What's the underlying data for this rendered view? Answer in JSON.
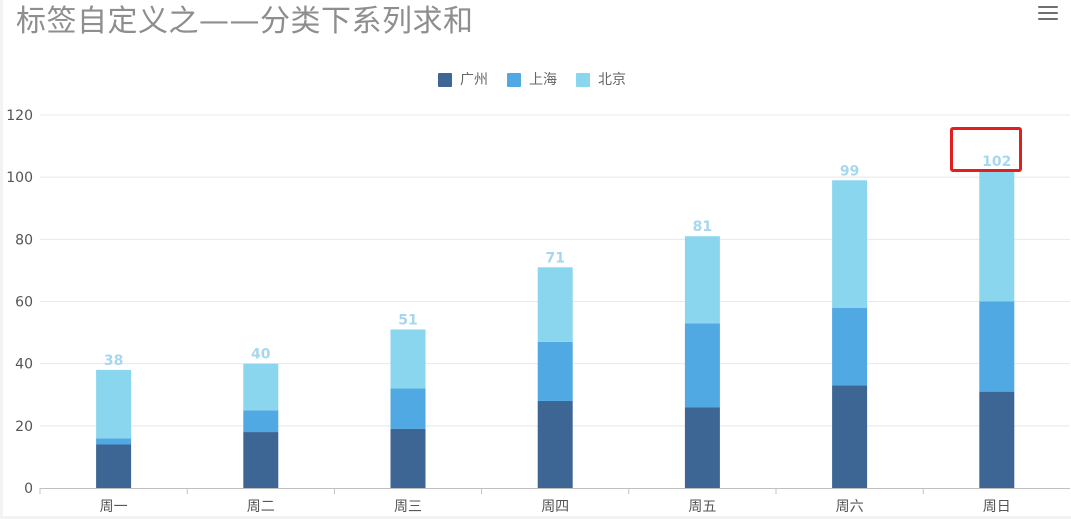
{
  "title": "标签自定义之——分类下系列求和",
  "chart_data": {
    "type": "bar",
    "stacked": true,
    "categories": [
      "周一",
      "周二",
      "周三",
      "周四",
      "周五",
      "周六",
      "周日"
    ],
    "series": [
      {
        "name": "广州",
        "color": "#3d6694",
        "values": [
          14,
          18,
          19,
          28,
          26,
          33,
          31
        ]
      },
      {
        "name": "上海",
        "color": "#50a9e3",
        "values": [
          2,
          7,
          13,
          19,
          27,
          25,
          29
        ]
      },
      {
        "name": "北京",
        "color": "#8bd6ef",
        "values": [
          22,
          15,
          19,
          24,
          28,
          41,
          42
        ]
      }
    ],
    "totals": [
      "38",
      "40",
      "51",
      "71",
      "81",
      "99",
      "102"
    ],
    "yticks": [
      "0",
      "20",
      "40",
      "60",
      "80",
      "100",
      "120"
    ],
    "ylim": [
      0,
      120
    ],
    "grid": true,
    "legend_position": "top-center",
    "highlight_category": "周日"
  },
  "toolbar": {
    "icon": "menu-icon"
  }
}
